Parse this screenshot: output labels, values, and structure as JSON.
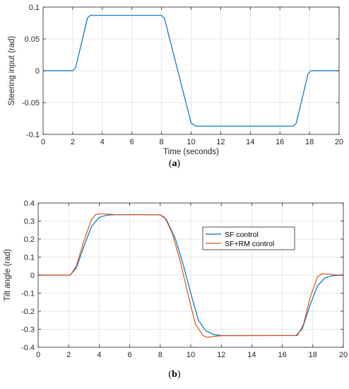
{
  "chart_data": [
    {
      "type": "line",
      "title": "",
      "xlabel": "Time (seconds)",
      "ylabel": "Steering input (rad)",
      "xlim": [
        0,
        20
      ],
      "ylim": [
        -0.1,
        0.1
      ],
      "x_ticks": [
        "0",
        "2",
        "4",
        "6",
        "8",
        "10",
        "12",
        "14",
        "16",
        "18",
        "20"
      ],
      "y_ticks": [
        "0.1",
        "0.05",
        "0",
        "-0.05",
        "-0.1"
      ],
      "y_tick_values": [
        0.1,
        0.05,
        0,
        -0.05,
        -0.1
      ],
      "grid": true,
      "series": [
        {
          "name": "",
          "color": "#0072BD",
          "x": [
            0,
            2.0,
            2.2,
            3.0,
            3.2,
            8.0,
            8.2,
            10.0,
            10.3,
            16.9,
            17.1,
            17.9,
            18.1,
            20
          ],
          "y": [
            0,
            0,
            0.005,
            0.083,
            0.087,
            0.087,
            0.082,
            -0.082,
            -0.087,
            -0.087,
            -0.083,
            -0.005,
            0,
            0
          ]
        }
      ],
      "caption_letter": "a"
    },
    {
      "type": "line",
      "title": "",
      "xlabel": "",
      "ylabel": "Tilt angle (rad)",
      "xlim": [
        0,
        20
      ],
      "ylim": [
        -0.4,
        0.4
      ],
      "x_ticks": [
        "0",
        "2",
        "4",
        "6",
        "8",
        "10",
        "12",
        "14",
        "16",
        "18",
        "20"
      ],
      "y_ticks": [
        "0.4",
        "0.3",
        "0.2",
        "0.1",
        "0",
        "-0.1",
        "-0.2",
        "-0.3",
        "-0.4"
      ],
      "y_tick_values": [
        0.4,
        0.3,
        0.2,
        0.1,
        0,
        -0.1,
        -0.2,
        -0.3,
        -0.4
      ],
      "grid": true,
      "legend_position": "top-right",
      "series": [
        {
          "name": "SF control",
          "color": "#0072BD",
          "x": [
            0,
            2.1,
            2.5,
            3.0,
            3.5,
            4.0,
            4.5,
            5.0,
            8.0,
            8.4,
            9.0,
            9.5,
            10.0,
            10.5,
            11.0,
            11.5,
            12.0,
            16.9,
            17.3,
            17.8,
            18.3,
            18.8,
            19.3,
            20
          ],
          "y": [
            0,
            0,
            0.04,
            0.16,
            0.27,
            0.32,
            0.333,
            0.335,
            0.335,
            0.31,
            0.2,
            0.06,
            -0.1,
            -0.25,
            -0.31,
            -0.33,
            -0.335,
            -0.335,
            -0.3,
            -0.17,
            -0.06,
            -0.015,
            -0.003,
            0
          ]
        },
        {
          "name": "SF+RM control",
          "color": "#D95319",
          "x": [
            0,
            2.1,
            2.5,
            3.0,
            3.5,
            3.8,
            4.2,
            5.0,
            8.0,
            8.3,
            8.8,
            9.3,
            9.8,
            10.3,
            10.8,
            11.1,
            11.5,
            12.0,
            17.0,
            17.4,
            17.8,
            18.3,
            18.6,
            19.0,
            19.5,
            20
          ],
          "y": [
            0,
            0,
            0.05,
            0.19,
            0.31,
            0.338,
            0.34,
            0.336,
            0.335,
            0.32,
            0.23,
            0.08,
            -0.1,
            -0.27,
            -0.335,
            -0.345,
            -0.34,
            -0.336,
            -0.335,
            -0.27,
            -0.13,
            -0.01,
            0.008,
            0.005,
            0.001,
            0
          ]
        }
      ],
      "caption_letter": "b"
    }
  ]
}
